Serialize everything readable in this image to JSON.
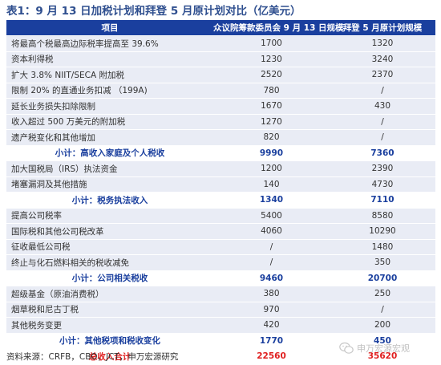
{
  "title": "表1：9 月 13 日加税计划和拜登 5 月原计划对比（亿美元）",
  "columns": [
    "项目",
    "众议院筹款委员会 9 月 13 日规模",
    "拜登 5 月原计划规模"
  ],
  "rows": [
    {
      "type": "norm",
      "label": "将最高个税最高边际税率提高至 39.6%",
      "a": "1700",
      "b": "1320"
    },
    {
      "type": "norm",
      "label": "资本利得税",
      "a": "1230",
      "b": "3240"
    },
    {
      "type": "norm",
      "label": "扩大 3.8% NIIT/SECA 附加税",
      "a": "2520",
      "b": "2370"
    },
    {
      "type": "norm",
      "label": "限制 20% 的直通业务扣减 （199A)",
      "a": "780",
      "b": "/"
    },
    {
      "type": "norm",
      "label": "延长业务损失扣除限制",
      "a": "1670",
      "b": "430"
    },
    {
      "type": "norm",
      "label": "收入超过 500 万美元的附加税",
      "a": "1270",
      "b": "/"
    },
    {
      "type": "norm",
      "label": "遗产税变化和其他增加",
      "a": "820",
      "b": "/"
    },
    {
      "type": "sub",
      "label": "小计：高收入家庭及个人税收",
      "a": "9990",
      "b": "7360"
    },
    {
      "type": "norm",
      "label": "加大国税局（IRS）执法资金",
      "a": "1200",
      "b": "2390"
    },
    {
      "type": "norm",
      "label": "堵塞漏洞及其他措施",
      "a": "140",
      "b": "4730"
    },
    {
      "type": "sub",
      "label": "小计：税务执法收入",
      "a": "1340",
      "b": "7110"
    },
    {
      "type": "norm",
      "label": "提高公司税率",
      "a": "5400",
      "b": "8580"
    },
    {
      "type": "norm",
      "label": "国际税和其他公司税改革",
      "a": "4060",
      "b": "10290"
    },
    {
      "type": "norm",
      "label": "征收最低公司税",
      "a": "/",
      "b": "1480"
    },
    {
      "type": "norm",
      "label": "终止与化石燃料相关的税收减免",
      "a": "/",
      "b": "350"
    },
    {
      "type": "sub",
      "label": "小计：公司相关税收",
      "a": "9460",
      "b": "20700"
    },
    {
      "type": "norm",
      "label": "超级基金（原油消费税）",
      "a": "380",
      "b": "250"
    },
    {
      "type": "norm",
      "label": "烟草税和尼古丁税",
      "a": "970",
      "b": "/"
    },
    {
      "type": "norm",
      "label": "其他税务变更",
      "a": "420",
      "b": "200"
    },
    {
      "type": "sub",
      "label": "小计：其他税项和税收变化",
      "a": "1770",
      "b": "450"
    },
    {
      "type": "total",
      "label": "总收入合计",
      "a": "22560",
      "b": "35620"
    }
  ],
  "source": "资料来源：CRFB，CBO，JCT，申万宏源研究",
  "watermark": "申万宏源宏观",
  "colors": {
    "header_bg": "#1a3f9e",
    "row_bg": "#e9ecf5",
    "subtotal_text": "#1a3f9e",
    "total_text": "#e02020",
    "title_text": "#2f4f8f"
  }
}
